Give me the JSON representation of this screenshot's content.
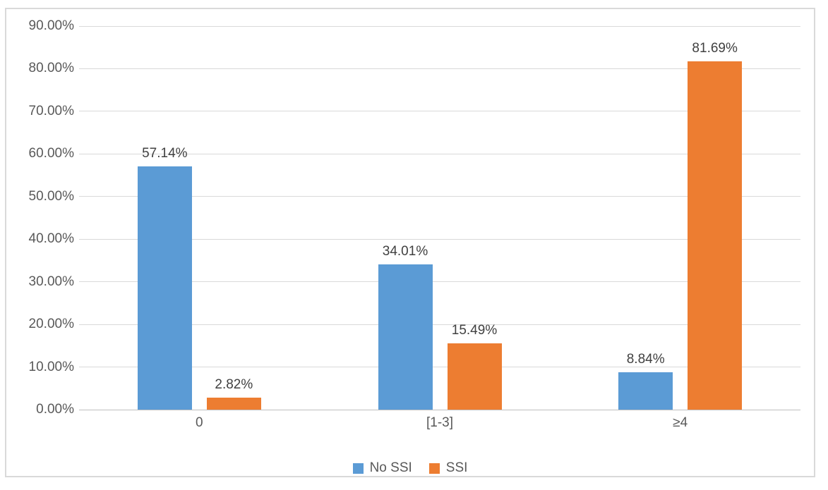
{
  "chart_data": {
    "type": "bar",
    "title": "",
    "xlabel": "",
    "ylabel": "",
    "categories": [
      "0",
      "[1-3]",
      "≥4"
    ],
    "series": [
      {
        "name": "No SSI",
        "color": "#5B9BD5",
        "values": [
          57.14,
          34.01,
          8.84
        ],
        "data_labels": [
          "57.14%",
          "34.01%",
          "8.84%"
        ]
      },
      {
        "name": "SSI",
        "color": "#ED7D31",
        "values": [
          2.82,
          15.49,
          81.69
        ],
        "data_labels": [
          "2.82%",
          "15.49%",
          "81.69%"
        ]
      }
    ],
    "ylim": [
      0,
      90
    ],
    "ytick_step": 10,
    "ytick_labels": [
      "0.00%",
      "10.00%",
      "20.00%",
      "30.00%",
      "40.00%",
      "50.00%",
      "60.00%",
      "70.00%",
      "80.00%",
      "90.00%"
    ],
    "grid": true,
    "legend_position": "bottom"
  },
  "colors": {
    "gridline": "#D9D9D9",
    "axis_line": "#BFBFBF",
    "axis_text": "#595959",
    "data_label_text": "#404040",
    "frame_border": "#D9D9D9",
    "background": "#FFFFFF"
  }
}
